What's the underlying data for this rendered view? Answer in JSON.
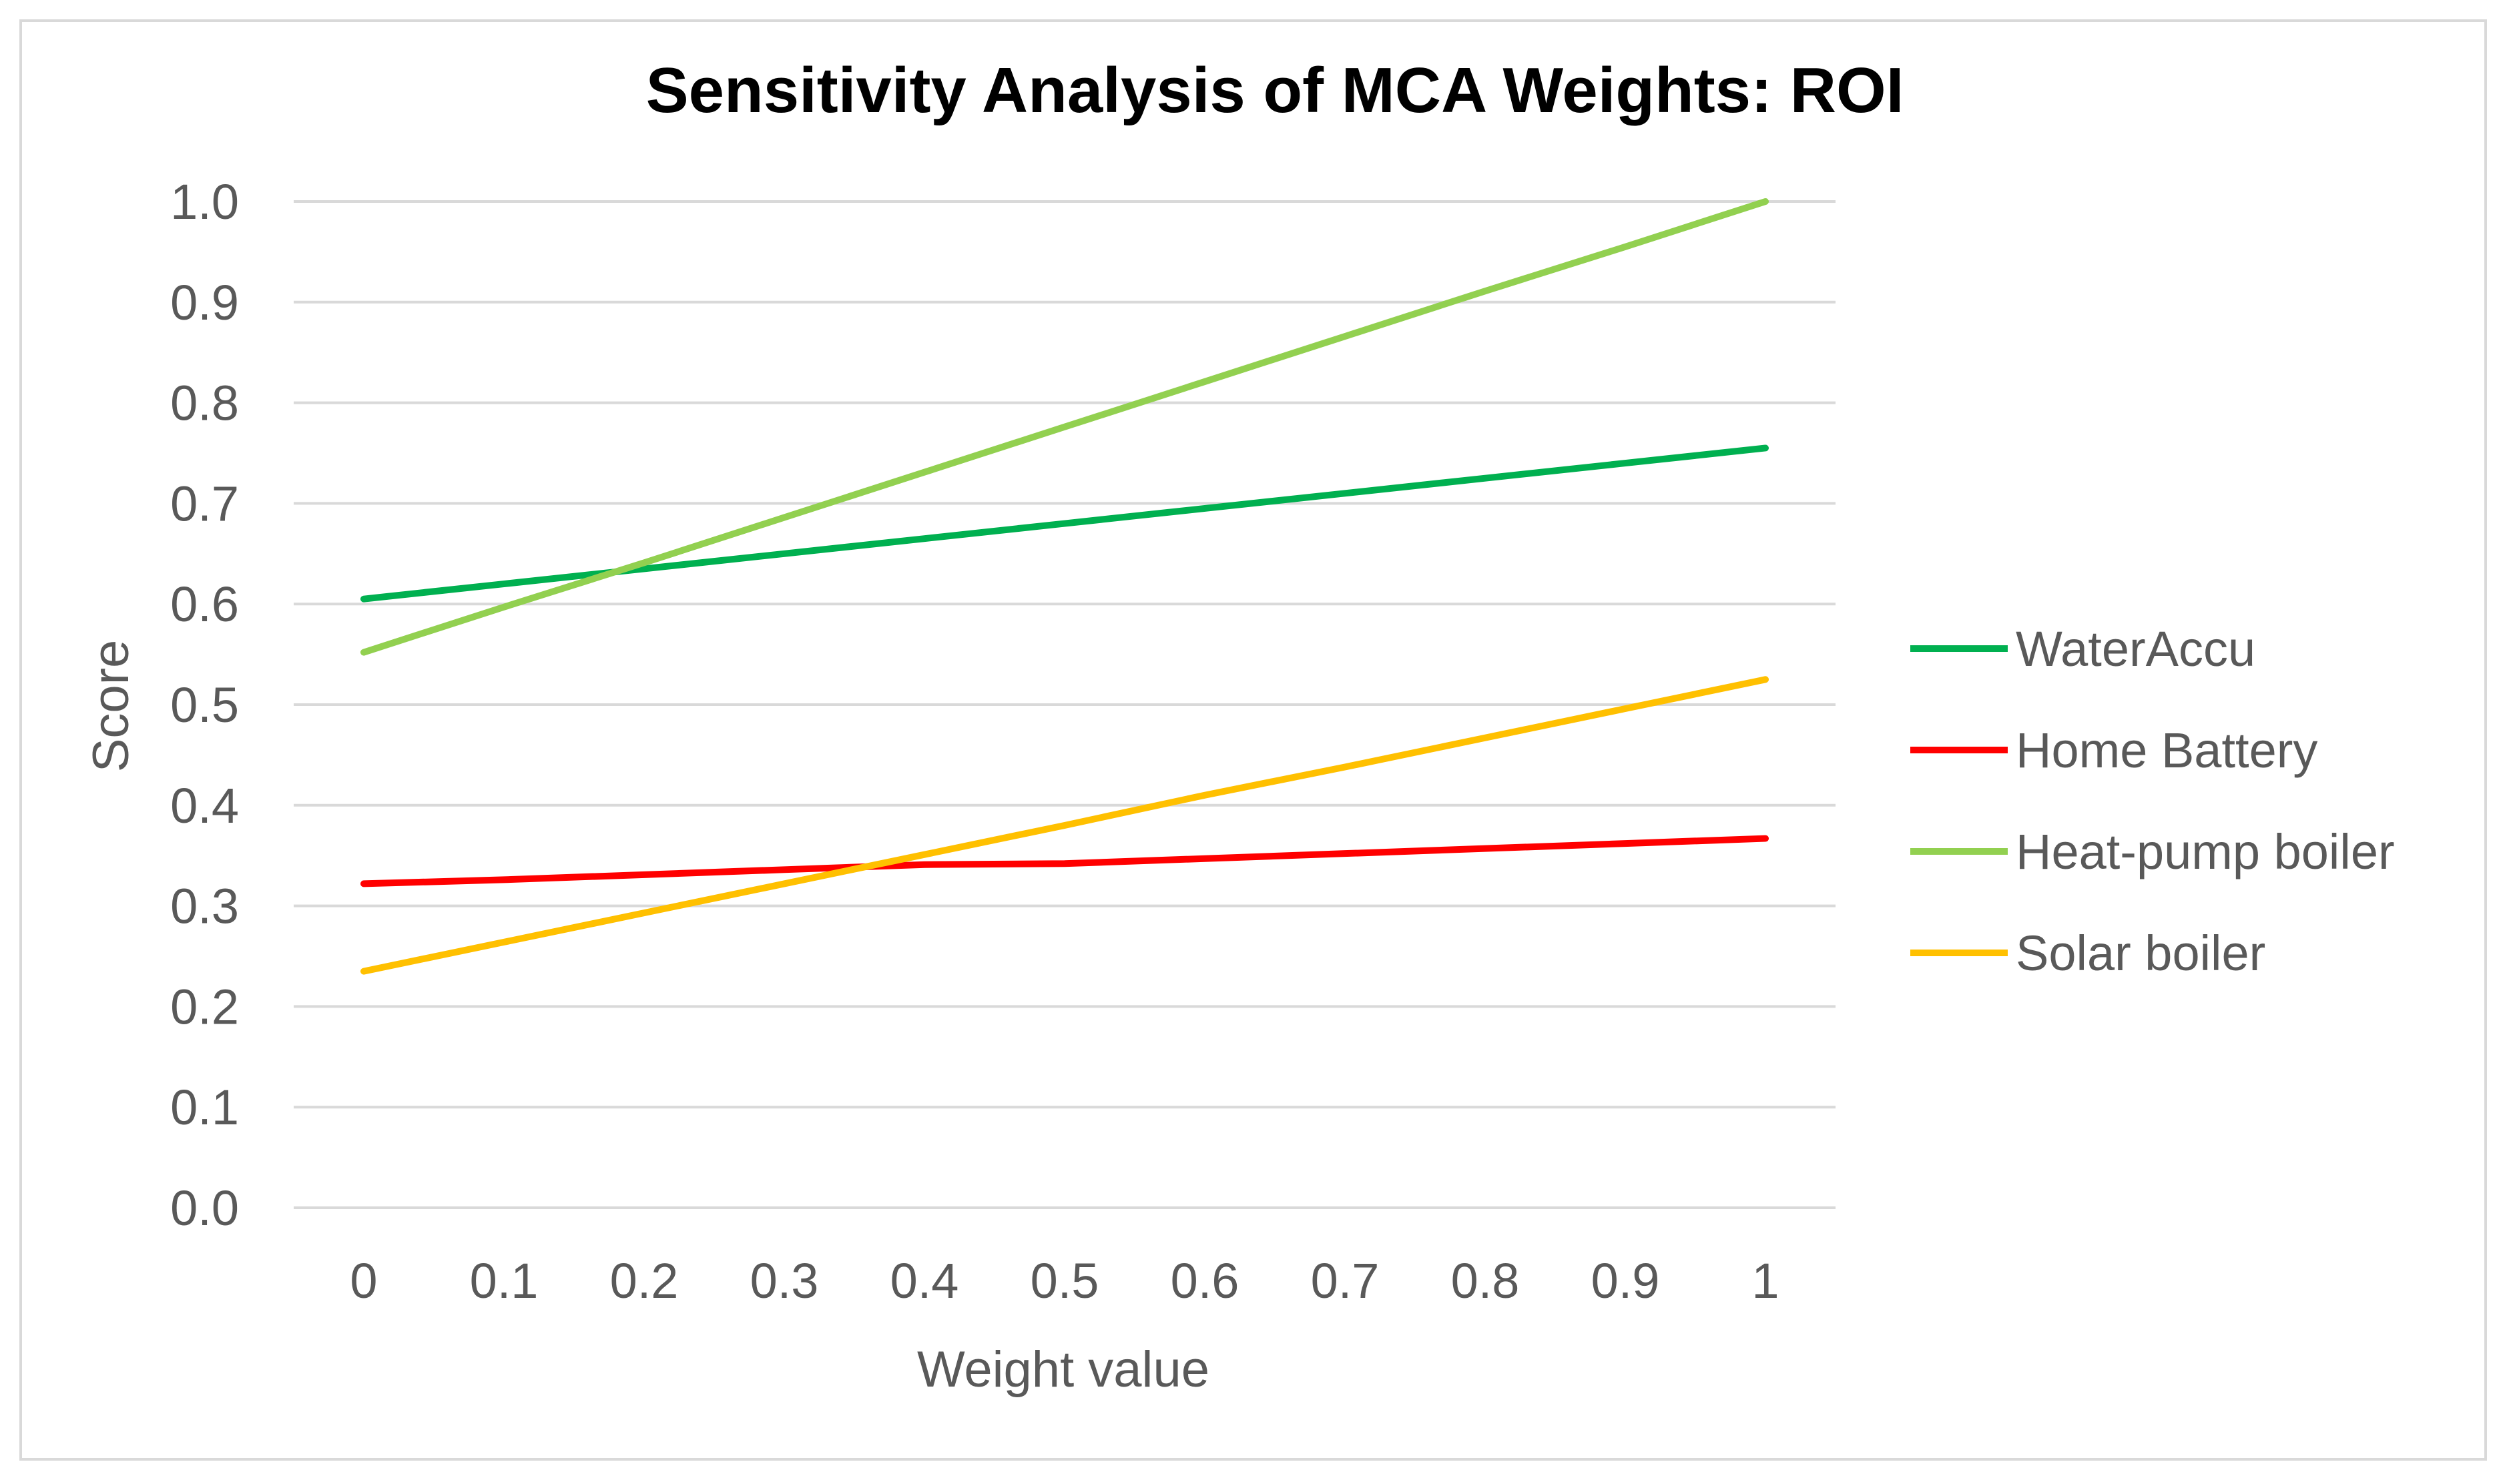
{
  "chart_data": {
    "type": "line",
    "title": "Sensitivity Analysis of MCA Weights: ROI",
    "xlabel": "Weight value",
    "ylabel": "Score",
    "x": [
      0,
      0.1,
      0.2,
      0.3,
      0.4,
      0.5,
      0.6,
      0.7,
      0.8,
      0.9,
      1
    ],
    "x_tick_labels": [
      "0",
      "0.1",
      "0.2",
      "0.3",
      "0.4",
      "0.5",
      "0.6",
      "0.7",
      "0.8",
      "0.9",
      "1"
    ],
    "y_tick_labels": [
      "0.0",
      "0.1",
      "0.2",
      "0.3",
      "0.4",
      "0.5",
      "0.6",
      "0.7",
      "0.8",
      "0.9",
      "1.0"
    ],
    "ylim": [
      0,
      1
    ],
    "grid": true,
    "legend_position": "right",
    "series": [
      {
        "name": "WaterAccu",
        "color": "#00b050",
        "values": [
          0.605,
          0.62,
          0.635,
          0.65,
          0.665,
          0.68,
          0.695,
          0.71,
          0.725,
          0.74,
          0.755
        ]
      },
      {
        "name": "Home Battery",
        "color": "#ff0000",
        "values": [
          0.322,
          0.326,
          0.331,
          0.336,
          0.341,
          0.342,
          0.347,
          0.352,
          0.357,
          0.362,
          0.367
        ]
      },
      {
        "name": "Heat-pump boiler",
        "color": "#92d050",
        "values": [
          0.552,
          0.597,
          0.641,
          0.686,
          0.731,
          0.776,
          0.821,
          0.866,
          0.911,
          0.955,
          1.0
        ]
      },
      {
        "name": "Solar boiler",
        "color": "#ffc000",
        "values": [
          0.235,
          0.264,
          0.293,
          0.322,
          0.351,
          0.38,
          0.41,
          0.438,
          0.467,
          0.496,
          0.525
        ]
      }
    ]
  }
}
